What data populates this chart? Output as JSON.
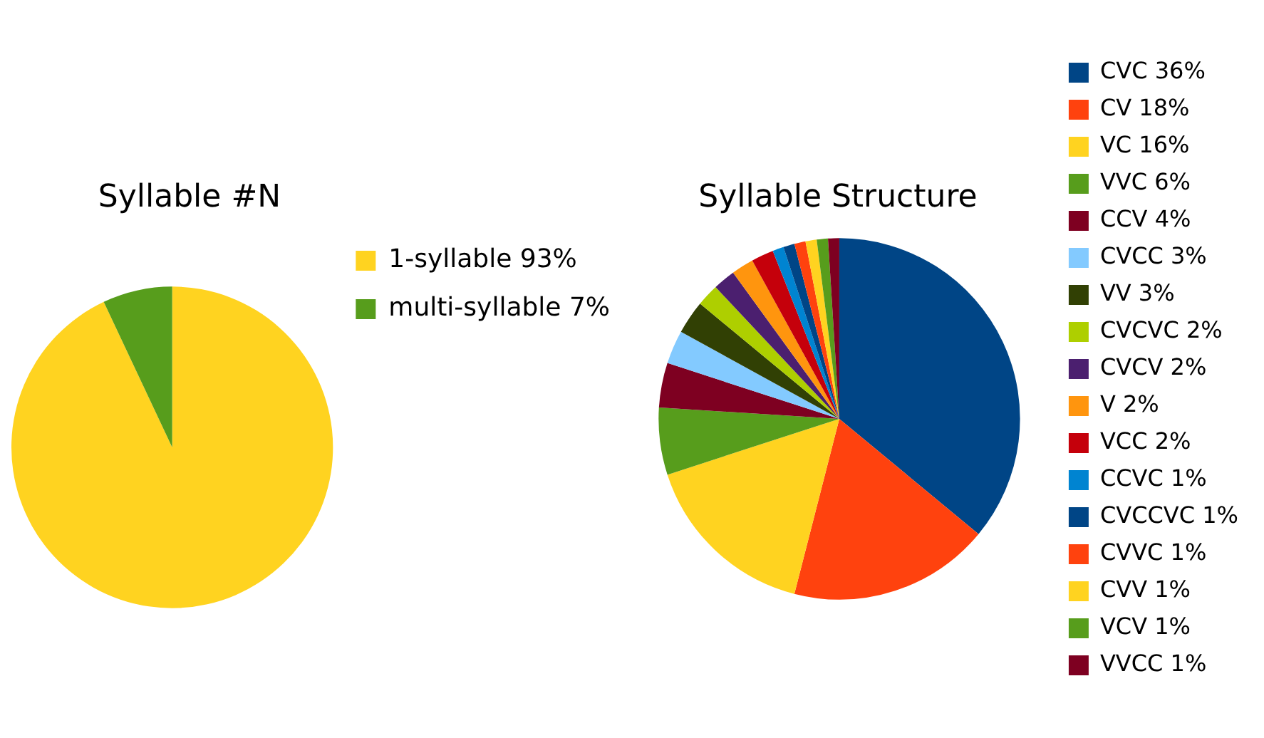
{
  "chart_data": [
    {
      "type": "pie",
      "title": "Syllable #N",
      "categories": [
        "1-syllable 93%",
        "multi-syllable 7%"
      ],
      "values": [
        93,
        7
      ],
      "colors": [
        "#ffd320",
        "#579d1c"
      ],
      "legend": "right"
    },
    {
      "type": "pie",
      "title": "Syllable Structure",
      "categories": [
        "CVC 36%",
        "CV 18%",
        "VC 16%",
        "VVC 6%",
        "CCV 4%",
        "CVCC 3%",
        "VV 3%",
        "CVCVC 2%",
        "CVCV 2%",
        "V 2%",
        "VCC 2%",
        "CCVC 1%",
        "CVCCVC 1%",
        "CVVC 1%",
        "CVV 1%",
        "VCV 1%",
        "VVCC 1%"
      ],
      "values": [
        36,
        18,
        16,
        6,
        4,
        3,
        3,
        2,
        2,
        2,
        2,
        1,
        1,
        1,
        1,
        1,
        1
      ],
      "colors": [
        "#004586",
        "#ff420e",
        "#ffd320",
        "#579d1c",
        "#7e0021",
        "#83caff",
        "#314004",
        "#aecf00",
        "#4b1f6f",
        "#ff950e",
        "#c5000b",
        "#0084d1",
        "#004586",
        "#ff420e",
        "#ffd320",
        "#579d1c",
        "#7e0021"
      ],
      "legend": "right"
    }
  ]
}
